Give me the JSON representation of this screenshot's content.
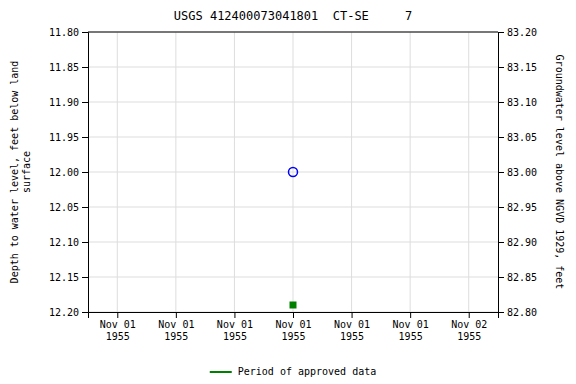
{
  "chart_data": {
    "type": "scatter",
    "title": "USGS 412400073041801  CT-SE     7",
    "ylabel": "Depth to water level, feet below land\nsurface",
    "y2label": "Groundwater level above NGVD 1929, feet",
    "categories": [
      "Nov 01\n1955",
      "Nov 01\n1955",
      "Nov 01\n1955",
      "Nov 01\n1955",
      "Nov 01\n1955",
      "Nov 01\n1955",
      "Nov 02\n1955"
    ],
    "series": [
      {
        "color": "blue",
        "marker": "open-circle",
        "values": [
          null,
          null,
          null,
          12,
          null,
          null,
          null
        ]
      },
      {
        "name": "Period of approved data",
        "color": "green",
        "marker": "square",
        "values": [
          null,
          null,
          null,
          12.19,
          null,
          null,
          null
        ]
      }
    ],
    "ylim": [
      12.2,
      11.8
    ],
    "yticks": [
      {
        "value": 11.8,
        "label": "11.80"
      },
      11.85,
      {
        "value": 11.9,
        "label": "11.90"
      },
      11.95,
      {
        "value": 12,
        "label": "12.00"
      },
      12.05,
      {
        "value": 12.1,
        "label": "12.10"
      },
      12.15,
      {
        "value": 12.2,
        "label": "12.20"
      }
    ],
    "y2lim": [
      82.8,
      83.2
    ],
    "y2ticks": [
      {
        "value": 82.8,
        "label": "82.80"
      },
      82.85,
      {
        "value": 82.9,
        "label": "82.90"
      },
      82.95,
      {
        "value": 83,
        "label": "83.00"
      },
      83.05,
      {
        "value": 83.1,
        "label": "83.10"
      },
      83.15,
      {
        "value": 83.2,
        "label": "83.20"
      }
    ],
    "grid": true,
    "legend": "bottom"
  }
}
